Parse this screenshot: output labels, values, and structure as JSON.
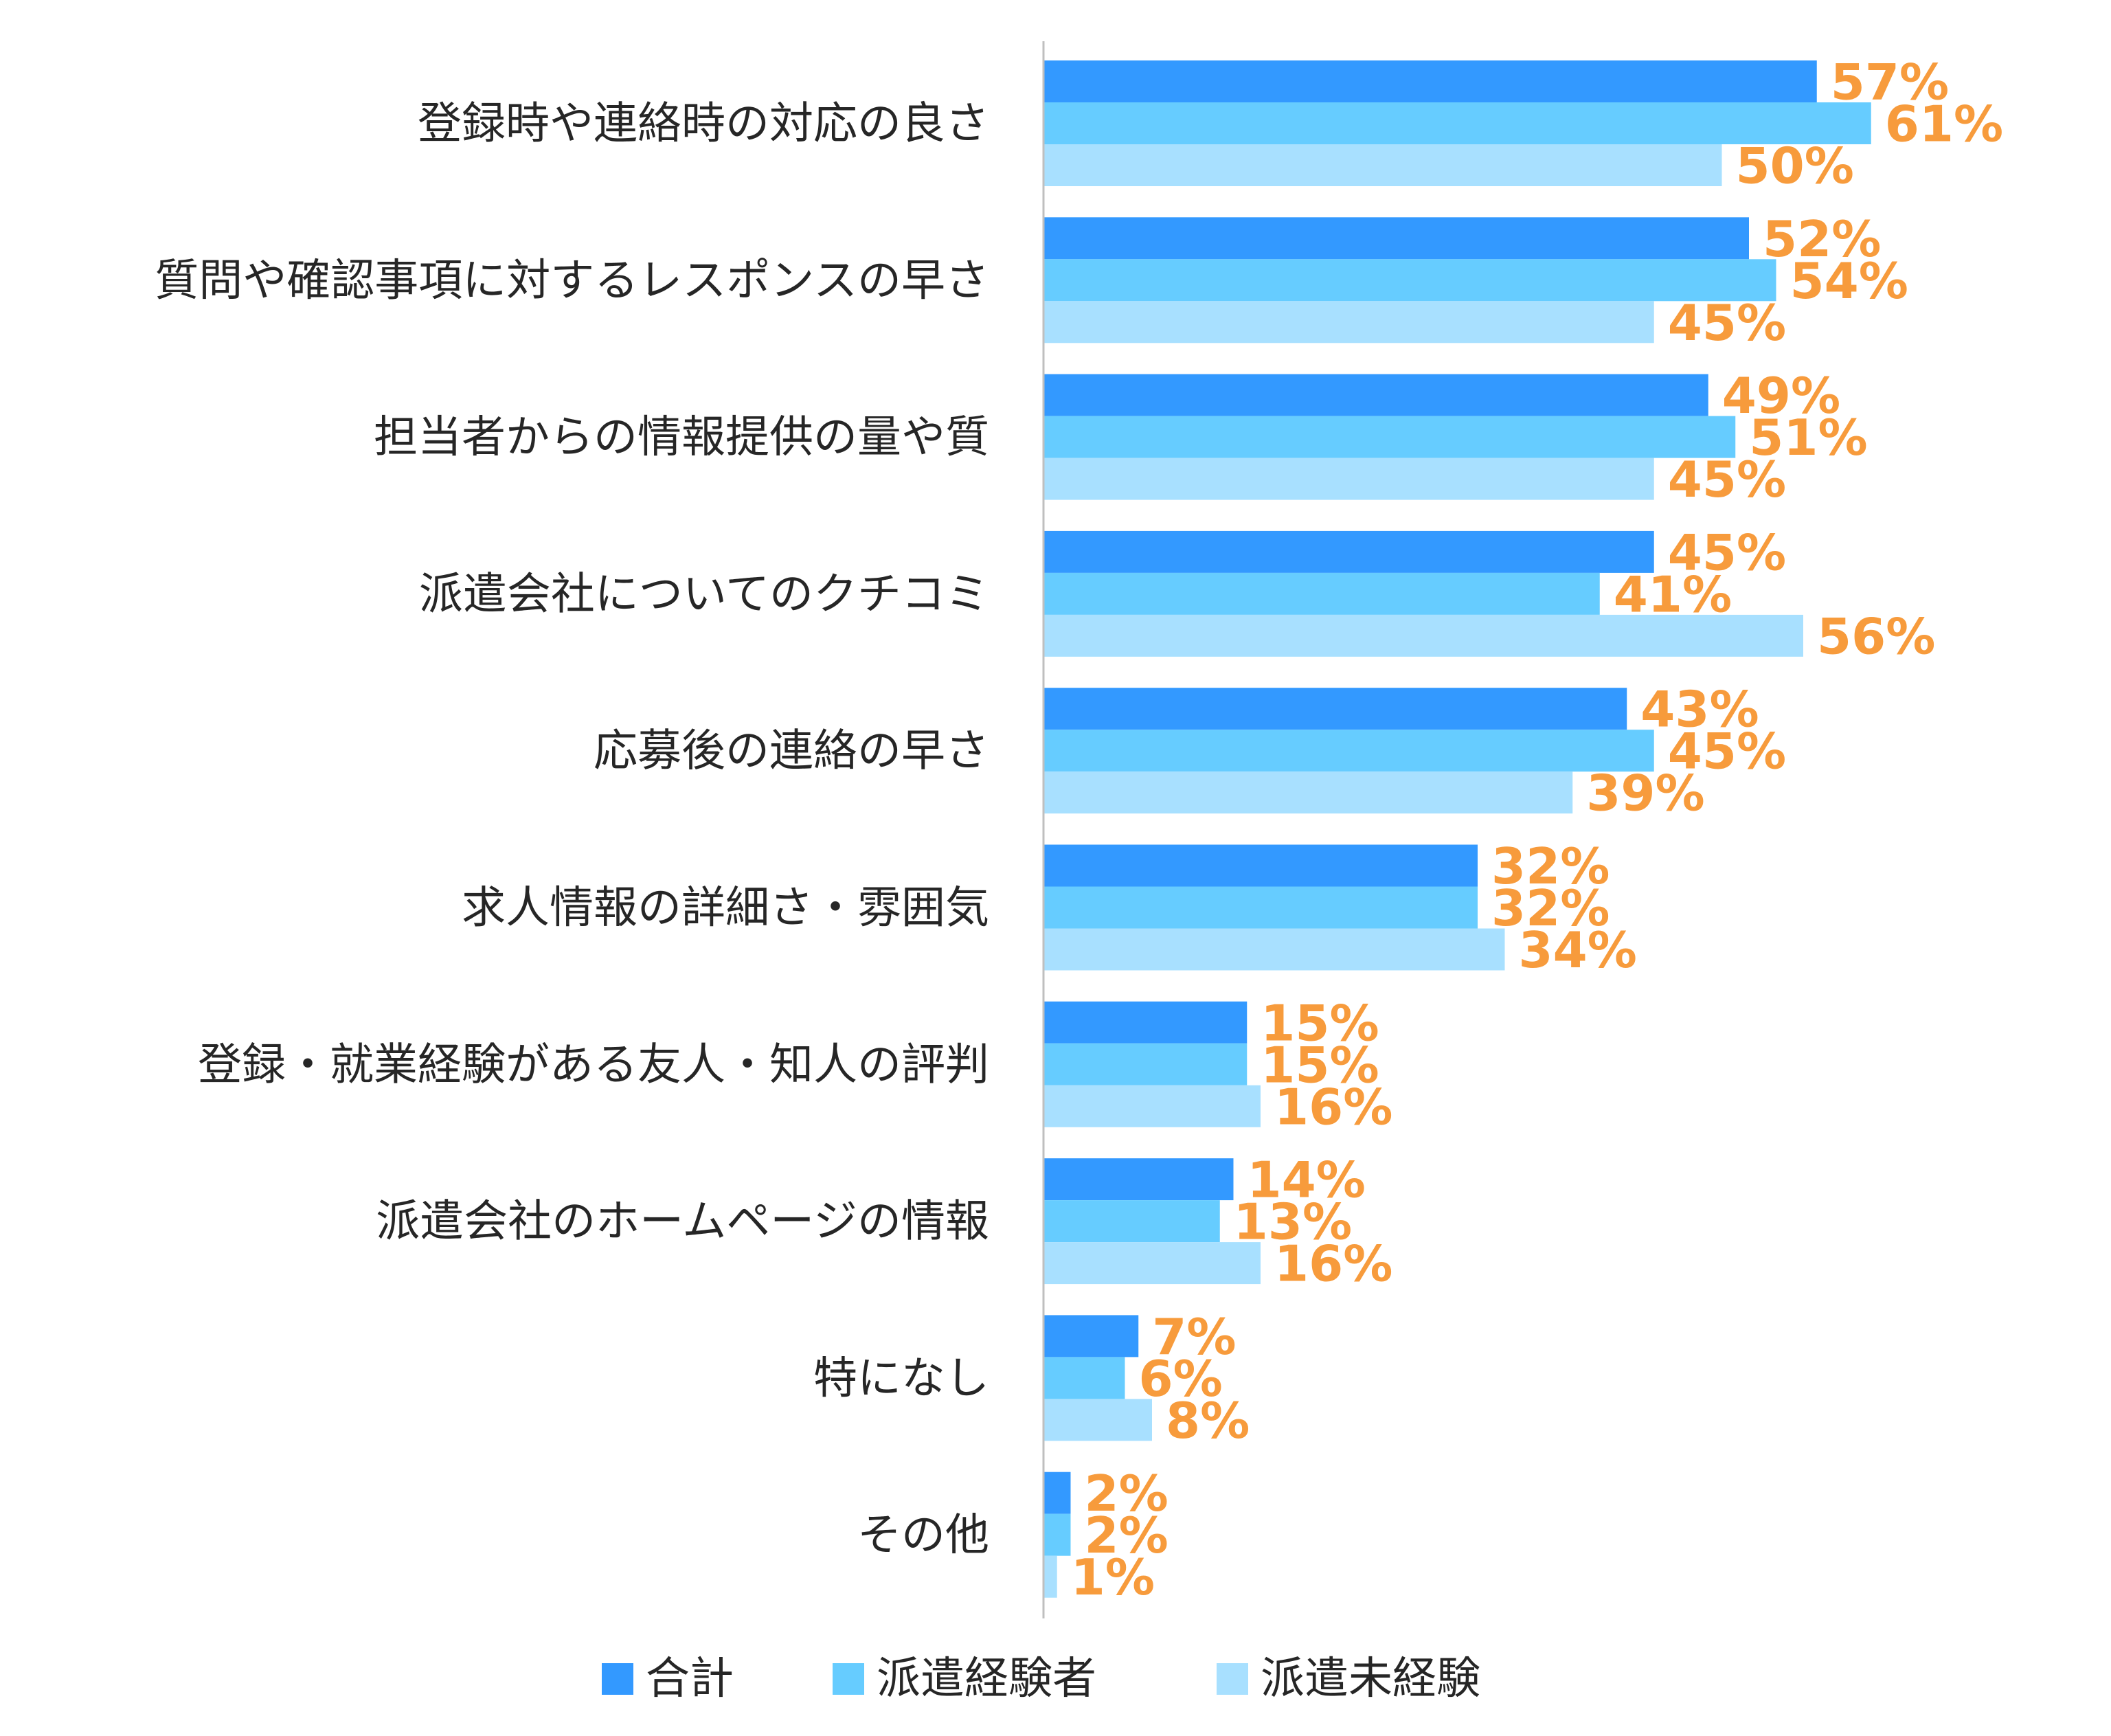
{
  "chart_data": {
    "type": "bar",
    "orientation": "horizontal",
    "categories": [
      "登録時や連絡時の対応の良さ",
      "質問や確認事項に対するレスポンスの早さ",
      "担当者からの情報提供の量や質",
      "派遣会社についてのクチコミ",
      "応募後の連絡の早さ",
      "求人情報の詳細さ・雰囲気",
      "登録・就業経験がある友人・知人の評判",
      "派遣会社のホームページの情報",
      "特になし",
      "その他"
    ],
    "series": [
      {
        "name": "合計",
        "color": "#3399FF",
        "values": [
          57,
          52,
          49,
          45,
          43,
          32,
          15,
          14,
          7,
          2
        ]
      },
      {
        "name": "派遣経験者",
        "color": "#66CCFF",
        "values": [
          61,
          54,
          51,
          41,
          45,
          32,
          15,
          13,
          6,
          2
        ]
      },
      {
        "name": "派遣未経験",
        "color": "#A8E0FF",
        "values": [
          50,
          45,
          45,
          56,
          39,
          34,
          16,
          16,
          8,
          1
        ]
      }
    ],
    "value_suffix": "%",
    "xlim": [
      0,
      80
    ],
    "grid": false,
    "legend_position": "bottom",
    "label_color": "#F79B3C"
  }
}
